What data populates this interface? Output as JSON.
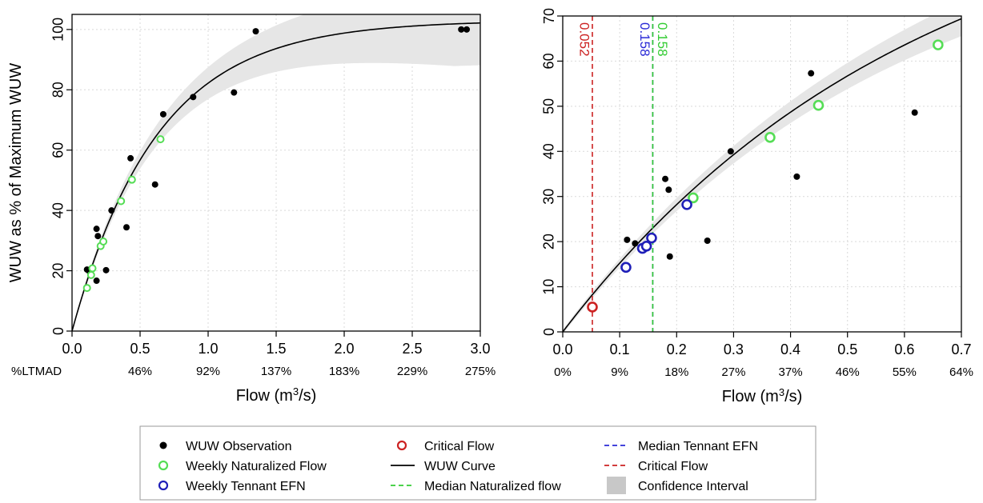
{
  "colors": {
    "observation": "#000000",
    "naturalized": "#55dd55",
    "tennant": "#1f1fb8",
    "critical": "#cc2222",
    "ci": "#e6e6e6",
    "grid": "#d9d9d9",
    "median_naturalized": "#33cc33",
    "median_tennant": "#2a2ad6",
    "critical_line": "#cc2222"
  },
  "chart_data": [
    {
      "type": "scatter",
      "panel": "left",
      "ylabel": "WUW as % of Maximum WUW",
      "xlabel_main": "Flow (m",
      "xlabel_sup": "3",
      "xlabel_end": "/s)",
      "xlim": [
        0,
        3.0
      ],
      "ylim": [
        0,
        105
      ],
      "x_ticks": [
        "0.0",
        "0.5",
        "1.0",
        "1.5",
        "2.0",
        "2.5",
        "3.0"
      ],
      "y_ticks": [
        "0",
        "20",
        "40",
        "60",
        "80",
        "100"
      ],
      "sub_axis_label": "%LTMAD",
      "sub_axis_ticks": [
        {
          "x": 0.5,
          "label": "46%"
        },
        {
          "x": 1.0,
          "label": "92%"
        },
        {
          "x": 1.5,
          "label": "137%"
        },
        {
          "x": 2.0,
          "label": "183%"
        },
        {
          "x": 2.5,
          "label": "229%"
        },
        {
          "x": 3.0,
          "label": "275%"
        }
      ],
      "curve": {
        "max": 103,
        "rate": 1.6
      },
      "ci_halfwidth": {
        "base": 0.5,
        "slope": 4.8,
        "cap": 14
      },
      "observations": [
        [
          0.11,
          20.4
        ],
        [
          0.13,
          19.6
        ],
        [
          0.18,
          33.9
        ],
        [
          0.19,
          31.5
        ],
        [
          0.18,
          16.7
        ],
        [
          0.25,
          20.2
        ],
        [
          0.29,
          40
        ],
        [
          0.4,
          34.4
        ],
        [
          0.43,
          57.3
        ],
        [
          0.61,
          48.6
        ],
        [
          0.67,
          71.9
        ],
        [
          0.89,
          77.6
        ],
        [
          1.19,
          79.1
        ],
        [
          1.35,
          99.4
        ],
        [
          2.86,
          100
        ],
        [
          2.9,
          100
        ]
      ],
      "naturalized": [
        [
          0.11,
          14.3
        ],
        [
          0.14,
          18.6
        ],
        [
          0.15,
          20.8
        ],
        [
          0.21,
          28.2
        ],
        [
          0.23,
          29.7
        ],
        [
          0.36,
          43.1
        ],
        [
          0.44,
          50.2
        ],
        [
          0.65,
          63.6
        ]
      ]
    },
    {
      "type": "scatter",
      "panel": "right",
      "xlabel_main": "Flow (m",
      "xlabel_sup": "3",
      "xlabel_end": "/s)",
      "xlim": [
        0,
        0.7
      ],
      "ylim": [
        0,
        70
      ],
      "x_ticks": [
        "0.0",
        "0.1",
        "0.2",
        "0.3",
        "0.4",
        "0.5",
        "0.6",
        "0.7"
      ],
      "y_ticks": [
        "0",
        "10",
        "20",
        "30",
        "40",
        "50",
        "60",
        "70"
      ],
      "sub_axis_ticks": [
        {
          "x": 0.0,
          "label": "0%"
        },
        {
          "x": 0.1,
          "label": "9%"
        },
        {
          "x": 0.2,
          "label": "18%"
        },
        {
          "x": 0.3,
          "label": "27%"
        },
        {
          "x": 0.4,
          "label": "37%"
        },
        {
          "x": 0.5,
          "label": "46%"
        },
        {
          "x": 0.6,
          "label": "55%"
        },
        {
          "x": 0.7,
          "label": "64%"
        }
      ],
      "curve": {
        "max": 103,
        "rate": 1.6
      },
      "ci_halfwidth": {
        "base": 0.5,
        "slope": 4.8,
        "cap": 14
      },
      "observations": [
        [
          0.113,
          20.4
        ],
        [
          0.127,
          19.6
        ],
        [
          0.18,
          33.9
        ],
        [
          0.186,
          31.5
        ],
        [
          0.188,
          16.7
        ],
        [
          0.254,
          20.2
        ],
        [
          0.295,
          40.0
        ],
        [
          0.411,
          34.4
        ],
        [
          0.436,
          57.3
        ],
        [
          0.618,
          48.6
        ]
      ],
      "naturalized": [
        [
          0.229,
          29.7
        ],
        [
          0.364,
          43.1
        ],
        [
          0.449,
          50.2
        ],
        [
          0.659,
          63.6
        ]
      ],
      "tennant": [
        [
          0.111,
          14.3
        ],
        [
          0.14,
          18.5
        ],
        [
          0.147,
          19.0
        ],
        [
          0.156,
          20.8
        ],
        [
          0.218,
          28.2
        ]
      ],
      "critical": [
        [
          0.052,
          5.5
        ]
      ],
      "vlines": [
        {
          "x": 0.052,
          "label": "0.052",
          "color_key": "critical_line",
          "label_offset": -11
        },
        {
          "x": 0.158,
          "label": "0.158",
          "color_key": "median_tennant",
          "label_offset": -11
        },
        {
          "x": 0.158,
          "label": "0.158",
          "color_key": "median_naturalized",
          "label_offset": 11
        }
      ]
    }
  ],
  "legend": {
    "items": [
      {
        "label": "WUW Observation",
        "symbol": "dot",
        "color_key": "observation"
      },
      {
        "label": "Weekly Naturalized Flow",
        "symbol": "circle",
        "color_key": "naturalized"
      },
      {
        "label": "Weekly Tennant EFN",
        "symbol": "circle",
        "color_key": "tennant"
      },
      {
        "label": "Critical Flow",
        "symbol": "circle",
        "color_key": "critical"
      },
      {
        "label": "WUW Curve",
        "symbol": "line",
        "color_key": "observation"
      },
      {
        "label": "Median Naturalized flow",
        "symbol": "dash",
        "color_key": "median_naturalized"
      },
      {
        "label": "Median Tennant EFN",
        "symbol": "dash",
        "color_key": "median_tennant"
      },
      {
        "label": "Critical Flow",
        "symbol": "dash",
        "color_key": "critical_line"
      },
      {
        "label": "Confidence Interval",
        "symbol": "box",
        "color_key": "ci"
      }
    ]
  }
}
